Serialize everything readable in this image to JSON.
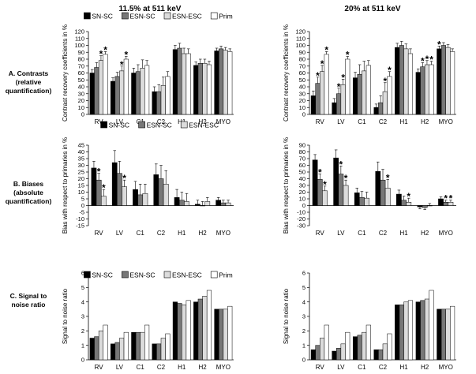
{
  "column_titles": [
    "11.5% at 511 keV",
    "20% at 511 keV"
  ],
  "row_labels": [
    [
      "A. Contrasts",
      "(relative",
      "quantification)"
    ],
    [
      "B. Biases",
      "(absolute",
      "quantification)"
    ],
    [
      "C. Signal to",
      "noise ratio"
    ]
  ],
  "chart_data": [
    {
      "id": "contrast-11",
      "type": "bar",
      "row": 0,
      "col": 0,
      "ylabel": "Contrast recovery coefficients in %",
      "ylim": [
        0,
        120
      ],
      "yticks": [
        0,
        10,
        20,
        30,
        40,
        50,
        60,
        70,
        80,
        90,
        100,
        110,
        120
      ],
      "categories": [
        "RV",
        "LV",
        "C1",
        "C2",
        "H1",
        "H2",
        "MYO"
      ],
      "legend": [
        "SN-SC",
        "ESN-SC",
        "ESN-ESC",
        "Prim"
      ],
      "series": [
        {
          "name": "SN-SC",
          "values": [
            60,
            48,
            60,
            33,
            94,
            71,
            92
          ],
          "err": [
            5,
            5,
            7,
            7,
            6,
            5,
            4
          ]
        },
        {
          "name": "ESN-SC",
          "values": [
            68,
            55,
            62,
            33,
            96,
            74,
            95
          ],
          "err": [
            7,
            6,
            10,
            10,
            7,
            6,
            4
          ]
        },
        {
          "name": "ESN-ESC",
          "values": [
            78,
            63,
            67,
            42,
            88,
            74,
            93
          ],
          "err": [
            7,
            7,
            12,
            12,
            8,
            6,
            4
          ]
        },
        {
          "name": "Prim",
          "values": [
            87,
            80,
            71,
            55,
            88,
            72,
            91
          ],
          "err": [
            4,
            4,
            7,
            7,
            7,
            5,
            4
          ]
        }
      ],
      "stars": [
        [
          0,
          2
        ],
        [
          0,
          3
        ],
        [
          1,
          2
        ],
        [
          1,
          3
        ]
      ]
    },
    {
      "id": "contrast-20",
      "type": "bar",
      "row": 0,
      "col": 1,
      "ylabel": "Contrast recovery coefficients in %",
      "ylim": [
        0,
        120
      ],
      "yticks": [
        0,
        10,
        20,
        30,
        40,
        50,
        60,
        70,
        80,
        90,
        100,
        110,
        120
      ],
      "categories": [
        "RV",
        "LV",
        "C1",
        "C2",
        "H1",
        "H2",
        "MYO"
      ],
      "legend": [],
      "series": [
        {
          "name": "SN-SC",
          "values": [
            27,
            17,
            53,
            10,
            97,
            61,
            95
          ],
          "err": [
            7,
            6,
            8,
            5,
            6,
            5,
            4
          ]
        },
        {
          "name": "ESN-SC",
          "values": [
            45,
            30,
            58,
            17,
            100,
            69,
            100
          ],
          "err": [
            9,
            8,
            14,
            10,
            6,
            6,
            4
          ]
        },
        {
          "name": "ESN-ESC",
          "values": [
            62,
            43,
            63,
            33,
            95,
            72,
            97
          ],
          "err": [
            9,
            8,
            14,
            13,
            7,
            6,
            4
          ]
        },
        {
          "name": "Prim",
          "values": [
            87,
            80,
            71,
            55,
            88,
            72,
            91
          ],
          "err": [
            4,
            4,
            7,
            7,
            7,
            5,
            4
          ]
        }
      ],
      "stars": [
        [
          0,
          1
        ],
        [
          0,
          2
        ],
        [
          0,
          3
        ],
        [
          1,
          1
        ],
        [
          1,
          2
        ],
        [
          1,
          3
        ],
        [
          3,
          2
        ],
        [
          3,
          3
        ],
        [
          5,
          1
        ],
        [
          5,
          2
        ],
        [
          5,
          3
        ],
        [
          6,
          0
        ]
      ]
    },
    {
      "id": "bias-11",
      "type": "bar",
      "row": 1,
      "col": 0,
      "ylabel": "Bias with respect to primaries in %",
      "ylim": [
        -15,
        45
      ],
      "yticks": [
        -15,
        -10,
        -5,
        0,
        5,
        10,
        15,
        20,
        25,
        30,
        35,
        40,
        45
      ],
      "categories": [
        "RV",
        "LV",
        "C1",
        "C2",
        "H1",
        "H2",
        "MYO"
      ],
      "legend": [
        "SN-SC",
        "ESN-SC",
        "ESN-ESC"
      ],
      "series": [
        {
          "name": "SN-SC",
          "values": [
            28,
            32,
            12,
            23,
            6,
            1,
            4
          ],
          "err": [
            5,
            9,
            6,
            8,
            6,
            3,
            2
          ]
        },
        {
          "name": "ESN-SC",
          "values": [
            19,
            24,
            8,
            20,
            4,
            0,
            2
          ],
          "err": [
            5,
            9,
            8,
            10,
            6,
            3,
            2
          ]
        },
        {
          "name": "ESN-ESC",
          "values": [
            7,
            14,
            9,
            16,
            3,
            3,
            2
          ],
          "err": [
            5,
            5,
            7,
            10,
            6,
            3,
            2
          ]
        }
      ],
      "stars": [
        [
          0,
          1
        ],
        [
          0,
          2
        ],
        [
          1,
          2
        ]
      ]
    },
    {
      "id": "bias-20",
      "type": "bar",
      "row": 1,
      "col": 1,
      "ylabel": "Bias with respect to primaries in %",
      "ylim": [
        -30,
        90
      ],
      "yticks": [
        -30,
        -20,
        -10,
        0,
        10,
        20,
        30,
        40,
        50,
        60,
        70,
        80,
        90
      ],
      "categories": [
        "RV",
        "LV",
        "C1",
        "C2",
        "H1",
        "H2",
        "MYO"
      ],
      "legend": [],
      "series": [
        {
          "name": "SN-SC",
          "values": [
            68,
            71,
            19,
            51,
            17,
            -2,
            10
          ],
          "err": [
            8,
            12,
            7,
            14,
            6,
            3,
            3
          ]
        },
        {
          "name": "ESN-SC",
          "values": [
            39,
            47,
            12,
            38,
            8,
            -3,
            5
          ],
          "err": [
            8,
            12,
            9,
            16,
            6,
            3,
            3
          ]
        },
        {
          "name": "ESN-ESC",
          "values": [
            22,
            30,
            11,
            26,
            5,
            0,
            5
          ],
          "err": [
            7,
            8,
            9,
            13,
            6,
            3,
            3
          ]
        }
      ],
      "stars": [
        [
          0,
          1
        ],
        [
          0,
          2
        ],
        [
          1,
          1
        ],
        [
          1,
          2
        ],
        [
          3,
          2
        ],
        [
          4,
          2
        ],
        [
          6,
          1
        ],
        [
          6,
          2
        ]
      ]
    },
    {
      "id": "snr-11",
      "type": "bar",
      "row": 2,
      "col": 0,
      "ylabel": "Signal to noise ratio",
      "ylim": [
        0,
        6
      ],
      "yticks": [
        0,
        1,
        2,
        3,
        4,
        5,
        6
      ],
      "categories": [
        "RV",
        "LV",
        "C1",
        "C2",
        "H1",
        "H2",
        "MYO"
      ],
      "legend": [
        "SN-SC",
        "ESN-SC",
        "ESN-ESC",
        "Prim"
      ],
      "series": [
        {
          "name": "SN-SC",
          "values": [
            1.5,
            1.1,
            1.9,
            1.1,
            4.0,
            4.0,
            3.5
          ]
        },
        {
          "name": "ESN-SC",
          "values": [
            1.6,
            1.2,
            1.9,
            1.1,
            3.9,
            4.2,
            3.5
          ]
        },
        {
          "name": "ESN-ESC",
          "values": [
            2.0,
            1.5,
            1.9,
            1.5,
            3.8,
            4.4,
            3.5
          ]
        },
        {
          "name": "Prim",
          "values": [
            2.4,
            1.9,
            2.4,
            1.8,
            4.1,
            4.8,
            3.7
          ]
        }
      ],
      "stars": []
    },
    {
      "id": "snr-20",
      "type": "bar",
      "row": 2,
      "col": 1,
      "ylabel": "Signal to noise ratio",
      "ylim": [
        0,
        6
      ],
      "yticks": [
        0,
        1,
        2,
        3,
        4,
        5,
        6
      ],
      "categories": [
        "RV",
        "LV",
        "C1",
        "C2",
        "H1",
        "H2",
        "MYO"
      ],
      "legend": [],
      "series": [
        {
          "name": "SN-SC",
          "values": [
            0.7,
            0.6,
            1.6,
            0.7,
            3.8,
            4.0,
            3.5
          ]
        },
        {
          "name": "ESN-SC",
          "values": [
            1.0,
            0.8,
            1.7,
            0.7,
            3.8,
            4.1,
            3.5
          ]
        },
        {
          "name": "ESN-ESC",
          "values": [
            1.5,
            1.1,
            1.9,
            1.1,
            4.0,
            4.2,
            3.5
          ]
        },
        {
          "name": "Prim",
          "values": [
            2.4,
            1.9,
            2.4,
            1.8,
            4.1,
            4.8,
            3.7
          ]
        }
      ],
      "stars": []
    }
  ],
  "styles": {
    "series_fills": [
      "#000000",
      "#777777",
      "#dcdcdc",
      "#ffffff"
    ],
    "axis_color": "#000000",
    "star_symbol": "*"
  }
}
